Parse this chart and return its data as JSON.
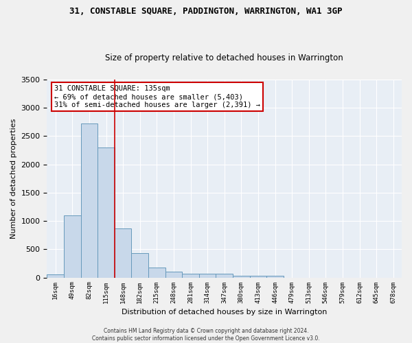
{
  "title": "31, CONSTABLE SQUARE, PADDINGTON, WARRINGTON, WA1 3GP",
  "subtitle": "Size of property relative to detached houses in Warrington",
  "xlabel": "Distribution of detached houses by size in Warrington",
  "ylabel": "Number of detached properties",
  "bar_color": "#c8d8ea",
  "bar_edge_color": "#6699bb",
  "background_color": "#e8eef5",
  "grid_color": "#ffffff",
  "categories": [
    "16sqm",
    "49sqm",
    "82sqm",
    "115sqm",
    "148sqm",
    "182sqm",
    "215sqm",
    "248sqm",
    "281sqm",
    "314sqm",
    "347sqm",
    "380sqm",
    "413sqm",
    "446sqm",
    "479sqm",
    "513sqm",
    "546sqm",
    "579sqm",
    "612sqm",
    "645sqm",
    "678sqm"
  ],
  "values": [
    55,
    1100,
    2720,
    2300,
    870,
    430,
    175,
    100,
    65,
    65,
    65,
    35,
    25,
    35,
    0,
    0,
    0,
    0,
    0,
    0,
    0
  ],
  "ylim": [
    0,
    3500
  ],
  "yticks": [
    0,
    500,
    1000,
    1500,
    2000,
    2500,
    3000,
    3500
  ],
  "vline_x": 3.5,
  "vline_color": "#cc0000",
  "annotation_text": "31 CONSTABLE SQUARE: 135sqm\n← 69% of detached houses are smaller (5,403)\n31% of semi-detached houses are larger (2,391) →",
  "annotation_box_facecolor": "#ffffff",
  "annotation_box_edgecolor": "#cc0000",
  "footer": "Contains HM Land Registry data © Crown copyright and database right 2024.\nContains public sector information licensed under the Open Government Licence v3.0."
}
